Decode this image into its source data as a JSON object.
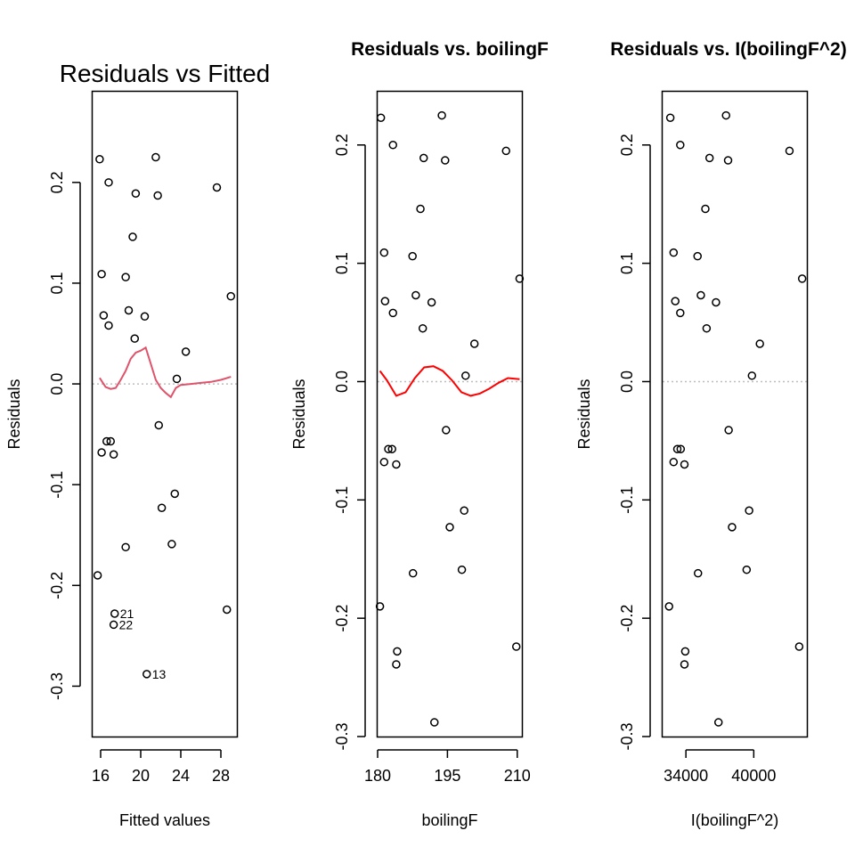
{
  "chart_data": [
    {
      "type": "scatter",
      "title": "Residuals vs Fitted",
      "xlabel": "Fitted values",
      "ylabel": "Residuals",
      "xlim": [
        15.2,
        29.6
      ],
      "ylim": [
        -0.35,
        0.29
      ],
      "xticks": [
        16,
        20,
        24,
        28
      ],
      "yticks": [
        -0.3,
        -0.2,
        -0.1,
        0.0,
        0.1,
        0.2
      ],
      "reference_line_y": 0,
      "points": [
        {
          "x": 15.9,
          "y": 0.223
        },
        {
          "x": 16.1,
          "y": 0.109
        },
        {
          "x": 16.3,
          "y": 0.068
        },
        {
          "x": 16.8,
          "y": 0.058
        },
        {
          "x": 16.8,
          "y": 0.2
        },
        {
          "x": 15.7,
          "y": -0.19
        },
        {
          "x": 16.1,
          "y": -0.068
        },
        {
          "x": 16.6,
          "y": -0.057
        },
        {
          "x": 17.0,
          "y": -0.057
        },
        {
          "x": 17.3,
          "y": -0.07
        },
        {
          "x": 17.4,
          "y": -0.228
        },
        {
          "x": 17.3,
          "y": -0.239
        },
        {
          "x": 18.5,
          "y": -0.162
        },
        {
          "x": 18.5,
          "y": 0.106
        },
        {
          "x": 18.8,
          "y": 0.073
        },
        {
          "x": 19.2,
          "y": 0.146
        },
        {
          "x": 19.4,
          "y": 0.045
        },
        {
          "x": 19.5,
          "y": 0.189
        },
        {
          "x": 20.4,
          "y": 0.067
        },
        {
          "x": 20.6,
          "y": -0.288
        },
        {
          "x": 21.5,
          "y": 0.225
        },
        {
          "x": 21.7,
          "y": 0.187
        },
        {
          "x": 21.8,
          "y": -0.041
        },
        {
          "x": 22.1,
          "y": -0.123
        },
        {
          "x": 23.1,
          "y": -0.159
        },
        {
          "x": 23.4,
          "y": -0.109
        },
        {
          "x": 23.6,
          "y": 0.005
        },
        {
          "x": 24.5,
          "y": 0.032
        },
        {
          "x": 27.6,
          "y": 0.195
        },
        {
          "x": 28.6,
          "y": -0.224
        },
        {
          "x": 29.0,
          "y": 0.087
        }
      ],
      "point_labels": [
        {
          "x": 17.4,
          "y": -0.228,
          "text": "21"
        },
        {
          "x": 17.3,
          "y": -0.239,
          "text": "22"
        },
        {
          "x": 20.6,
          "y": -0.288,
          "text": "13"
        }
      ],
      "smooth": {
        "color": "#DF536B",
        "x": [
          15.9,
          16.5,
          17.0,
          17.5,
          18.0,
          18.5,
          19.0,
          19.5,
          20.0,
          20.5,
          21.0,
          21.5,
          22.0,
          22.5,
          23.0,
          23.5,
          24.0,
          25.0,
          26.0,
          27.0,
          28.0,
          29.0
        ],
        "y": [
          0.006,
          -0.003,
          -0.005,
          -0.004,
          0.004,
          0.013,
          0.025,
          0.031,
          0.033,
          0.036,
          0.02,
          0.004,
          -0.004,
          -0.009,
          -0.013,
          -0.004,
          -0.001,
          0.0,
          0.001,
          0.002,
          0.004,
          0.007
        ]
      }
    },
    {
      "type": "scatter",
      "title": "Residuals vs. boilingF",
      "xlabel": "boilingF",
      "ylabel": "Residuals",
      "xlim": [
        180,
        211
      ],
      "ylim": [
        -0.3,
        0.245
      ],
      "xticks": [
        180,
        195,
        210
      ],
      "yticks": [
        -0.3,
        -0.2,
        -0.1,
        0.0,
        0.1,
        0.2
      ],
      "reference_line_y": 0,
      "points": [
        {
          "x": 180.7,
          "y": 0.223
        },
        {
          "x": 181.4,
          "y": 0.109
        },
        {
          "x": 181.6,
          "y": 0.068
        },
        {
          "x": 183.3,
          "y": 0.058
        },
        {
          "x": 183.3,
          "y": 0.2
        },
        {
          "x": 180.5,
          "y": -0.19
        },
        {
          "x": 181.4,
          "y": -0.068
        },
        {
          "x": 182.3,
          "y": -0.057
        },
        {
          "x": 183.1,
          "y": -0.057
        },
        {
          "x": 184.0,
          "y": -0.07
        },
        {
          "x": 184.2,
          "y": -0.228
        },
        {
          "x": 184.0,
          "y": -0.239
        },
        {
          "x": 187.6,
          "y": -0.162
        },
        {
          "x": 187.5,
          "y": 0.106
        },
        {
          "x": 188.2,
          "y": 0.073
        },
        {
          "x": 189.2,
          "y": 0.146
        },
        {
          "x": 189.7,
          "y": 0.045
        },
        {
          "x": 189.9,
          "y": 0.189
        },
        {
          "x": 191.6,
          "y": 0.067
        },
        {
          "x": 192.2,
          "y": -0.288
        },
        {
          "x": 193.8,
          "y": 0.225
        },
        {
          "x": 194.5,
          "y": 0.187
        },
        {
          "x": 194.7,
          "y": -0.041
        },
        {
          "x": 195.5,
          "y": -0.123
        },
        {
          "x": 198.1,
          "y": -0.159
        },
        {
          "x": 198.6,
          "y": -0.109
        },
        {
          "x": 198.9,
          "y": 0.005
        },
        {
          "x": 200.8,
          "y": 0.032
        },
        {
          "x": 207.6,
          "y": 0.195
        },
        {
          "x": 209.8,
          "y": -0.224
        },
        {
          "x": 210.5,
          "y": 0.087
        }
      ],
      "smooth": {
        "color": "#FF0000",
        "x": [
          180.5,
          182,
          184,
          186,
          188,
          190,
          192,
          194,
          196,
          198,
          200,
          202,
          204,
          206,
          208,
          210.5
        ],
        "y": [
          0.009,
          0.001,
          -0.012,
          -0.009,
          0.003,
          0.012,
          0.013,
          0.009,
          0.001,
          -0.009,
          -0.012,
          -0.01,
          -0.006,
          -0.001,
          0.003,
          0.002
        ]
      }
    },
    {
      "type": "scatter",
      "title": "Residuals vs. I(boilingF^2)",
      "xlabel": "I(boilingF^2)",
      "ylabel": "Residuals",
      "xlim": [
        31940,
        44700
      ],
      "ylim": [
        -0.3,
        0.245
      ],
      "xticks": [
        34000,
        40000
      ],
      "yticks": [
        -0.3,
        -0.2,
        -0.1,
        0.0,
        0.1,
        0.2
      ],
      "reference_line_y": 0,
      "points": [
        {
          "x": 32620,
          "y": 0.223
        },
        {
          "x": 32910,
          "y": 0.109
        },
        {
          "x": 33060,
          "y": 0.068
        },
        {
          "x": 33500,
          "y": 0.058
        },
        {
          "x": 33500,
          "y": 0.2
        },
        {
          "x": 32510,
          "y": -0.19
        },
        {
          "x": 32910,
          "y": -0.068
        },
        {
          "x": 33240,
          "y": -0.057
        },
        {
          "x": 33540,
          "y": -0.057
        },
        {
          "x": 33870,
          "y": -0.07
        },
        {
          "x": 33940,
          "y": -0.228
        },
        {
          "x": 33870,
          "y": -0.239
        },
        {
          "x": 35070,
          "y": -0.162
        },
        {
          "x": 35030,
          "y": 0.106
        },
        {
          "x": 35320,
          "y": 0.073
        },
        {
          "x": 35720,
          "y": 0.146
        },
        {
          "x": 35830,
          "y": 0.045
        },
        {
          "x": 36090,
          "y": 0.189
        },
        {
          "x": 36660,
          "y": 0.067
        },
        {
          "x": 36880,
          "y": -0.288
        },
        {
          "x": 37550,
          "y": 0.225
        },
        {
          "x": 37730,
          "y": 0.187
        },
        {
          "x": 37780,
          "y": -0.041
        },
        {
          "x": 38080,
          "y": -0.123
        },
        {
          "x": 39370,
          "y": -0.159
        },
        {
          "x": 39590,
          "y": -0.109
        },
        {
          "x": 39840,
          "y": 0.005
        },
        {
          "x": 40540,
          "y": 0.032
        },
        {
          "x": 43160,
          "y": 0.195
        },
        {
          "x": 44020,
          "y": -0.224
        },
        {
          "x": 44280,
          "y": 0.087
        }
      ]
    }
  ]
}
